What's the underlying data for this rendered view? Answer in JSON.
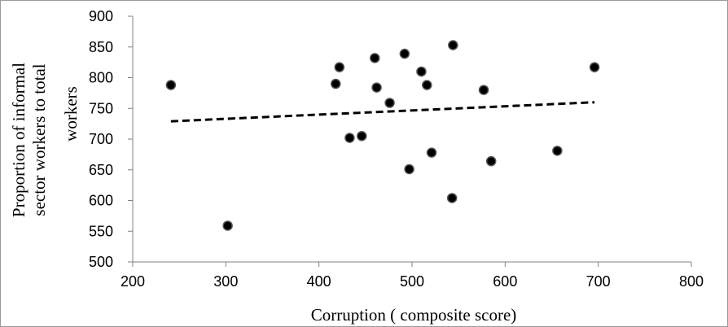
{
  "chart_data": {
    "type": "scatter",
    "title": "",
    "xlabel": "Corruption ( composite score)",
    "ylabel_lines": [
      "Proportion of informal",
      "sector workers to total",
      "workers"
    ],
    "xlim": [
      200,
      800
    ],
    "ylim": [
      500,
      900
    ],
    "x_ticks": [
      200,
      300,
      400,
      500,
      600,
      700,
      800
    ],
    "y_ticks": [
      500,
      550,
      600,
      650,
      700,
      750,
      800,
      850,
      900
    ],
    "grid": false,
    "legend": "none",
    "series": [
      {
        "points": [
          {
            "x": 241,
            "y": 788
          },
          {
            "x": 302,
            "y": 559
          },
          {
            "x": 418,
            "y": 790
          },
          {
            "x": 422,
            "y": 817
          },
          {
            "x": 433,
            "y": 702
          },
          {
            "x": 446,
            "y": 705
          },
          {
            "x": 460,
            "y": 832
          },
          {
            "x": 462,
            "y": 784
          },
          {
            "x": 476,
            "y": 759
          },
          {
            "x": 492,
            "y": 839
          },
          {
            "x": 497,
            "y": 651
          },
          {
            "x": 510,
            "y": 810
          },
          {
            "x": 516,
            "y": 788
          },
          {
            "x": 521,
            "y": 678
          },
          {
            "x": 543,
            "y": 604
          },
          {
            "x": 544,
            "y": 853
          },
          {
            "x": 577,
            "y": 780
          },
          {
            "x": 585,
            "y": 664
          },
          {
            "x": 656,
            "y": 681
          },
          {
            "x": 696,
            "y": 817
          }
        ]
      }
    ],
    "trendline": {
      "style": "dashed",
      "x": [
        241,
        696
      ],
      "y": [
        729,
        760
      ]
    },
    "colors": {
      "marker": "#000000",
      "trendline": "#000000",
      "axis": "#808080"
    }
  }
}
